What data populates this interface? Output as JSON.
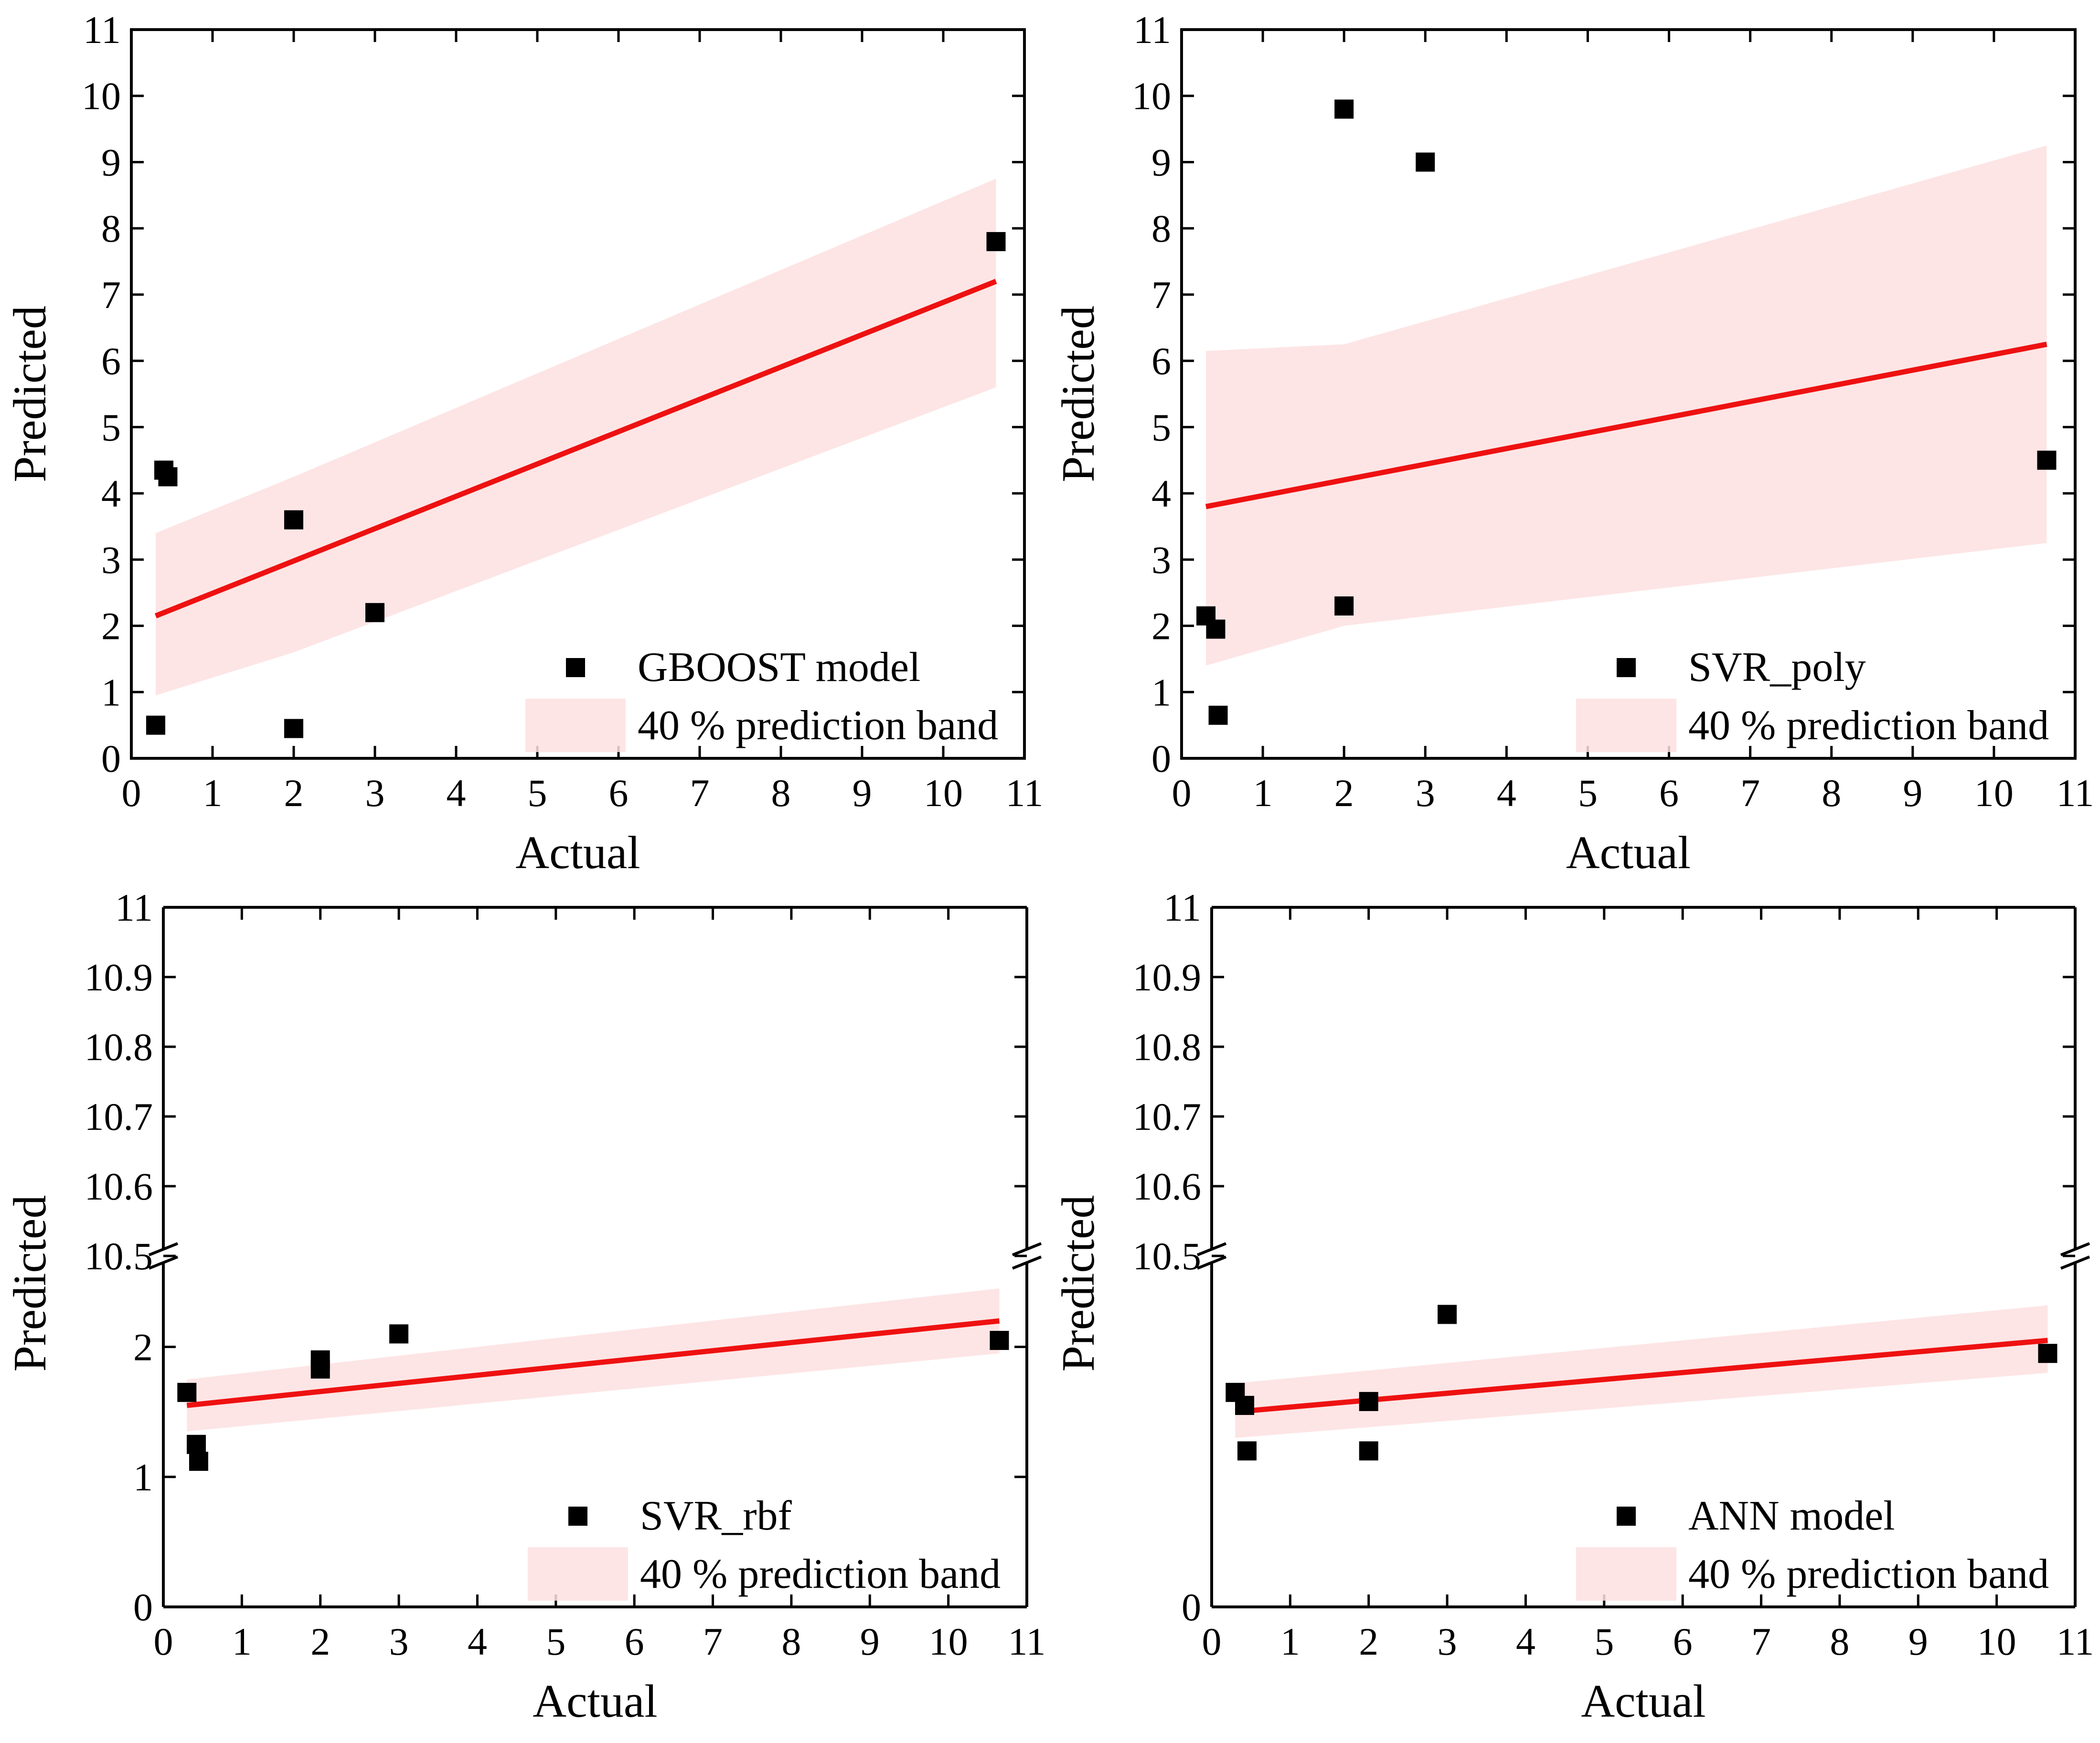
{
  "chart_data": [
    {
      "type": "scatter",
      "x": [
        0.3,
        0.4,
        0.45,
        2.0,
        2.0,
        3.0,
        10.65
      ],
      "y": [
        0.5,
        4.35,
        4.25,
        3.6,
        0.45,
        2.2,
        7.8
      ],
      "fit": {
        "x": [
          0.3,
          10.65
        ],
        "y": [
          2.15,
          7.2
        ]
      },
      "band": {
        "x": [
          0.3,
          2.0,
          10.65
        ],
        "upper": [
          3.4,
          4.25,
          8.75
        ],
        "lower": [
          0.95,
          1.6,
          5.6
        ]
      },
      "xlabel": "Actual",
      "ylabel": "Predicted",
      "xlim": [
        0,
        11
      ],
      "ylim": [
        0,
        11
      ],
      "xticks": [
        "0",
        "1",
        "2",
        "3",
        "4",
        "5",
        "6",
        "7",
        "8",
        "9",
        "10",
        "11"
      ],
      "yticks": [
        "0",
        "1",
        "2",
        "3",
        "4",
        "5",
        "6",
        "7",
        "8",
        "9",
        "10",
        "11"
      ],
      "legend": {
        "points": "GBOOST model",
        "band": "40 % prediction band"
      }
    },
    {
      "type": "scatter",
      "x": [
        0.3,
        0.42,
        0.45,
        2.0,
        2.0,
        3.0,
        10.65
      ],
      "y": [
        2.15,
        1.95,
        0.65,
        9.8,
        2.3,
        9.0,
        4.5
      ],
      "fit": {
        "x": [
          0.3,
          10.65
        ],
        "y": [
          3.8,
          6.25
        ]
      },
      "band": {
        "x": [
          0.3,
          2.0,
          10.65
        ],
        "upper": [
          6.15,
          6.25,
          9.25
        ],
        "lower": [
          1.4,
          2.0,
          3.25
        ]
      },
      "xlabel": "Actual",
      "ylabel": "Predicted",
      "xlim": [
        0,
        11
      ],
      "ylim": [
        0,
        11
      ],
      "xticks": [
        "0",
        "1",
        "2",
        "3",
        "4",
        "5",
        "6",
        "7",
        "8",
        "9",
        "10",
        "11"
      ],
      "yticks": [
        "0",
        "1",
        "2",
        "3",
        "4",
        "5",
        "6",
        "7",
        "8",
        "9",
        "10",
        "11"
      ],
      "legend": {
        "points": "SVR_poly",
        "band": "40 % prediction band"
      }
    },
    {
      "type": "scatter",
      "axis_break": true,
      "x": [
        0.3,
        0.42,
        0.45,
        2.0,
        2.0,
        3.0,
        10.65
      ],
      "y": [
        1.65,
        1.25,
        1.12,
        1.9,
        1.83,
        2.1,
        2.05
      ],
      "fit": {
        "x": [
          0.3,
          10.65
        ],
        "y": [
          1.55,
          2.2
        ]
      },
      "band": {
        "x": [
          0.3,
          10.65
        ],
        "upper": [
          1.75,
          2.45
        ],
        "lower": [
          1.35,
          1.95
        ]
      },
      "xlabel": "Actual",
      "ylabel": "Predicted",
      "xlim": [
        0,
        11
      ],
      "ylim_lower": [
        0,
        2.7
      ],
      "ylim_upper": [
        10.5,
        11
      ],
      "xticks": [
        "0",
        "1",
        "2",
        "3",
        "4",
        "5",
        "6",
        "7",
        "8",
        "9",
        "10",
        "11"
      ],
      "yticks_lower": [
        "0",
        "1",
        "2"
      ],
      "yticks_upper": [
        "10.5",
        "10.6",
        "10.7",
        "10.8",
        "10.9",
        "11"
      ],
      "legend": {
        "points": "SVR_rbf",
        "band": "40 % prediction band"
      }
    },
    {
      "type": "scatter",
      "axis_break": true,
      "x": [
        0.3,
        0.42,
        0.45,
        2.0,
        2.0,
        3.0,
        10.65
      ],
      "y": [
        1.65,
        1.55,
        1.2,
        1.58,
        1.2,
        2.25,
        1.95
      ],
      "fit": {
        "x": [
          0.3,
          10.65
        ],
        "y": [
          1.5,
          2.05
        ]
      },
      "band": {
        "x": [
          0.3,
          10.65
        ],
        "upper": [
          1.72,
          2.32
        ],
        "lower": [
          1.3,
          1.8
        ]
      },
      "xlabel": "Actual",
      "ylabel": "Predicted",
      "xlim": [
        0,
        11
      ],
      "ylim_lower": [
        0,
        2.7
      ],
      "ylim_upper": [
        10.5,
        11
      ],
      "xticks": [
        "0",
        "1",
        "2",
        "3",
        "4",
        "5",
        "6",
        "7",
        "8",
        "9",
        "10",
        "11"
      ],
      "yticks_lower": [
        "0"
      ],
      "yticks_upper": [
        "10.5",
        "10.6",
        "10.7",
        "10.8",
        "10.9",
        "11"
      ],
      "legend": {
        "points": "ANN model",
        "band": "40 % prediction band"
      }
    }
  ]
}
